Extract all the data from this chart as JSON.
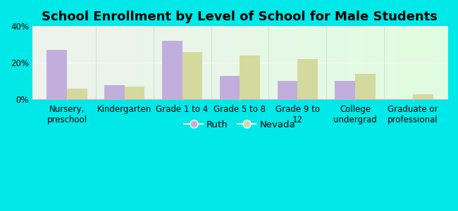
{
  "title": "School Enrollment by Level of School for Male Students",
  "categories": [
    "Nursery,\npreschool",
    "Kindergarten",
    "Grade 1 to 4",
    "Grade 5 to 8",
    "Grade 9 to\n12",
    "College\nundergrad",
    "Graduate or\nprofessional"
  ],
  "ruth_values": [
    27,
    8,
    32,
    13,
    10,
    10,
    0
  ],
  "nevada_values": [
    6,
    7,
    26,
    24,
    22,
    14,
    3
  ],
  "ruth_color": "#c2aedd",
  "nevada_color": "#d4d99e",
  "background_color": "#00e8e8",
  "ylim": [
    0,
    40
  ],
  "yticks": [
    0,
    20,
    40
  ],
  "ytick_labels": [
    "0%",
    "20%",
    "40%"
  ],
  "legend_labels": [
    "Ruth",
    "Nevada"
  ],
  "title_fontsize": 13,
  "tick_fontsize": 8.5,
  "bar_width": 0.35
}
